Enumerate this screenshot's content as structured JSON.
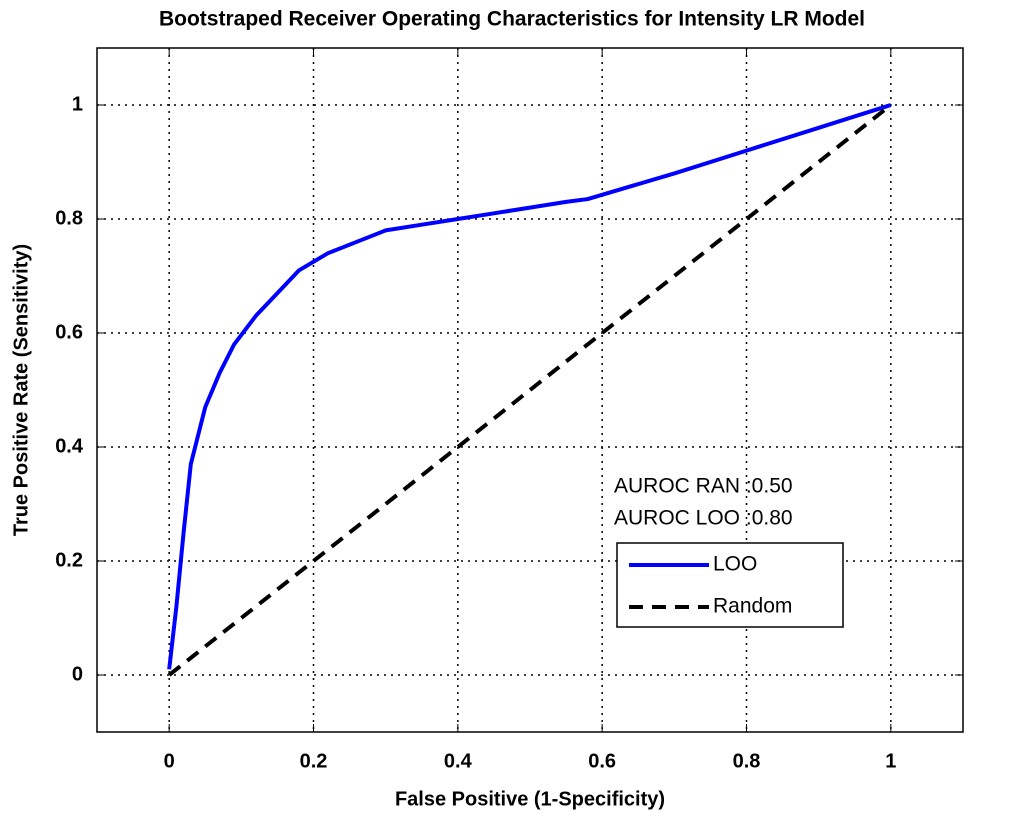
{
  "chart_data": {
    "type": "line",
    "title": "Bootstraped Receiver Operating Characteristics for Intensity LR Model",
    "x_label": "False Positive (1-Specificity)",
    "y_label": "True Positive Rate (Sensitivity)",
    "xlim": [
      -0.1,
      1.1
    ],
    "ylim": [
      -0.1,
      1.1
    ],
    "xticks": [
      0,
      0.2,
      0.4,
      0.6,
      0.8,
      1
    ],
    "yticks": [
      0,
      0.2,
      0.4,
      0.6,
      0.8,
      1
    ],
    "grid": true,
    "legend": "lower right",
    "annotations": [
      "AUROC RAN :0.50",
      "AUROC LOO :0.80"
    ],
    "series": [
      {
        "name": "LOO",
        "color": "#0000ff",
        "line_style": "solid",
        "x": [
          0,
          0.01,
          0.02,
          0.03,
          0.05,
          0.07,
          0.09,
          0.12,
          0.15,
          0.18,
          0.22,
          0.26,
          0.3,
          0.35,
          0.4,
          0.45,
          0.5,
          0.55,
          0.58,
          0.7,
          0.8,
          0.9,
          1.0
        ],
        "values": [
          0.01,
          0.12,
          0.25,
          0.37,
          0.47,
          0.53,
          0.58,
          0.63,
          0.67,
          0.71,
          0.74,
          0.76,
          0.78,
          0.79,
          0.8,
          0.81,
          0.82,
          0.83,
          0.835,
          0.88,
          0.92,
          0.96,
          1.0
        ]
      },
      {
        "name": "Random",
        "color": "#000000",
        "line_style": "dashed",
        "x": [
          0,
          1
        ],
        "values": [
          0,
          1
        ]
      }
    ]
  }
}
